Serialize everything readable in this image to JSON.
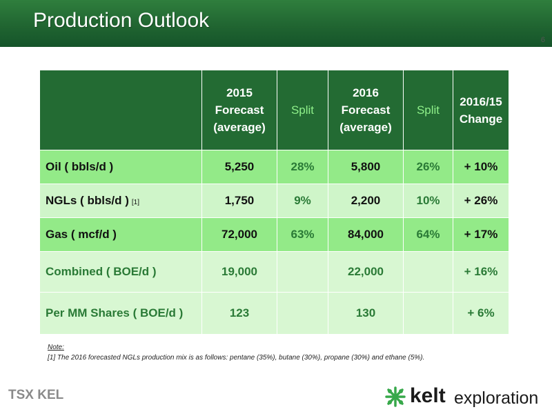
{
  "slide": {
    "title": "Production Outlook",
    "page_number": "6"
  },
  "table": {
    "headers": [
      "",
      "2015 Forecast (average)",
      "Split",
      "2016 Forecast (average)",
      "Split",
      "2016/15 Change"
    ],
    "header_lines": {
      "col1": [
        "2015",
        "Forecast",
        "(average)"
      ],
      "col2": [
        "Split"
      ],
      "col3": [
        "2016",
        "Forecast",
        "(average)"
      ],
      "col4": [
        "Split"
      ],
      "col5": [
        "2016/15",
        "Change"
      ]
    },
    "rows": [
      {
        "label": "Oil ( bbls/d )",
        "footnote": "",
        "f2015": "5,250",
        "split2015": "28%",
        "f2016": "5,800",
        "split2016": "26%",
        "change": "+ 10%"
      },
      {
        "label": "NGLs ( bbls/d )",
        "footnote": "[1]",
        "f2015": "1,750",
        "split2015": "9%",
        "f2016": "2,200",
        "split2016": "10%",
        "change": "+ 26%"
      },
      {
        "label": "Gas ( mcf/d )",
        "footnote": "",
        "f2015": "72,000",
        "split2015": "63%",
        "f2016": "84,000",
        "split2016": "64%",
        "change": "+ 17%"
      },
      {
        "label": "Combined ( BOE/d )",
        "footnote": "",
        "f2015": "19,000",
        "split2015": "",
        "f2016": "22,000",
        "split2016": "",
        "change": "+ 16%"
      },
      {
        "label": "Per MM Shares ( BOE/d )",
        "footnote": "",
        "f2015": "123",
        "split2015": "",
        "f2016": "130",
        "split2016": "",
        "change": "+ 6%"
      }
    ]
  },
  "notes": {
    "title": "Note:",
    "items": [
      "[1] The 2016 forecasted NGLs production mix is as follows: pentane (35%), butane (30%), propane (30%) and ethane (5%)."
    ]
  },
  "footer": {
    "tsx_logo": "TSX KEL",
    "kelt_logo_word": "kelt",
    "kelt_logo_sub": "exploration"
  },
  "colors": {
    "header_green": "#236b33",
    "split_header_green": "#8ff08a",
    "row_dark": "#93ea88",
    "row_light": "#cff5c9",
    "row_light_tall": "#d8f7d2",
    "text_green": "#2a7a36",
    "logo_green": "#37a84a"
  },
  "icons": {
    "kelt_mark": "kelt-knot-icon"
  }
}
